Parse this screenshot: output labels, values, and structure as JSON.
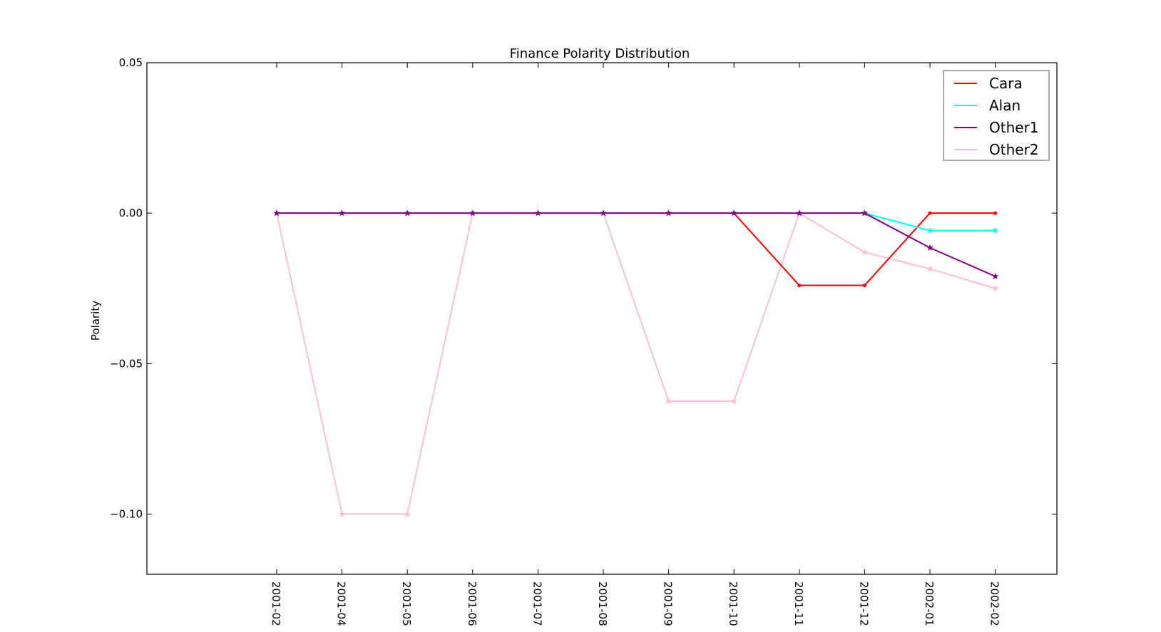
{
  "chart_data": {
    "type": "line",
    "title": "Finance Polarity Distribution",
    "xlabel": "",
    "ylabel": "Polarity",
    "categories": [
      "2001-02",
      "2001-04",
      "2001-05",
      "2001-06",
      "2001-07",
      "2001-08",
      "2001-09",
      "2001-10",
      "2001-11",
      "2001-12",
      "2002-01",
      "2002-02"
    ],
    "ylim": [
      -0.12,
      0.05
    ],
    "yticks": [
      0.05,
      0.0,
      -0.05,
      -0.1
    ],
    "ytick_labels": [
      "0.05",
      "0.00",
      "−0.05",
      "−0.10"
    ],
    "grid": false,
    "legend_position": "top-right",
    "series": [
      {
        "name": "Cara",
        "color": "#ff0000",
        "marker": "dot",
        "values": [
          null,
          null,
          null,
          null,
          null,
          null,
          null,
          0.0,
          -0.024,
          -0.024,
          0.0,
          0.0
        ]
      },
      {
        "name": "Alan",
        "color": "#00ffff",
        "marker": "star",
        "values": [
          null,
          null,
          null,
          null,
          null,
          null,
          null,
          null,
          null,
          0.0,
          -0.0058,
          -0.0058
        ]
      },
      {
        "name": "Other1",
        "color": "#800080",
        "marker": "star",
        "values": [
          0.0,
          0.0,
          0.0,
          0.0,
          0.0,
          0.0,
          0.0,
          0.0,
          0.0,
          0.0,
          -0.0115,
          -0.021
        ]
      },
      {
        "name": "Other2",
        "color": "#ffc0cb",
        "marker": "star",
        "values": [
          0.0,
          -0.1,
          -0.1,
          0.0,
          0.0,
          0.0,
          -0.0625,
          -0.0625,
          0.0,
          -0.013,
          -0.0185,
          -0.025
        ]
      }
    ]
  }
}
